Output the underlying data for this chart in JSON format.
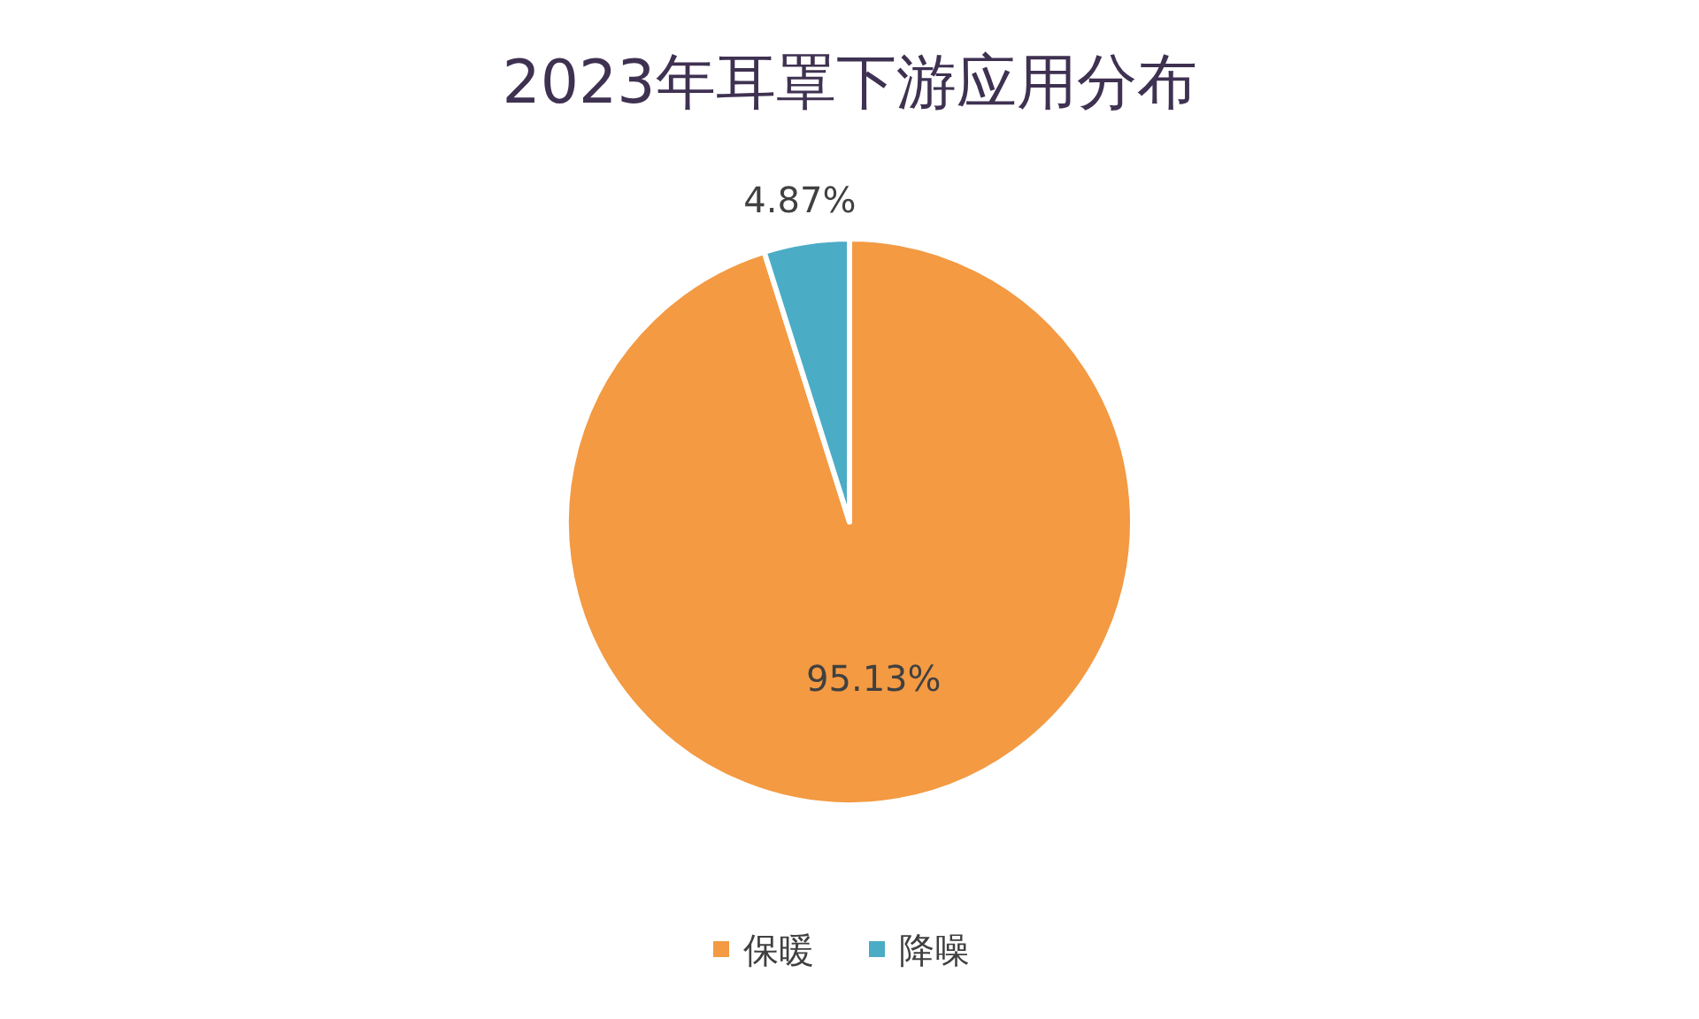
{
  "chart_data": {
    "type": "pie",
    "title": "2023年耳罩下游应用分布",
    "categories": [
      "保暖",
      "降噪"
    ],
    "values": [
      95.13,
      4.87
    ],
    "colors": [
      "#f39a43",
      "#4bacc6"
    ],
    "value_labels": [
      "95.13%",
      "4.87%"
    ],
    "legend": "bottom"
  }
}
